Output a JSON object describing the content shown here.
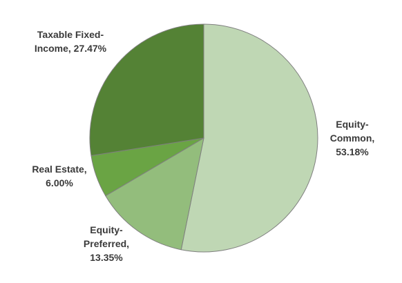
{
  "chart_data": {
    "type": "pie",
    "title": "",
    "slices": [
      {
        "label_lines": [
          "Equity-",
          "Common,",
          "53.18%"
        ],
        "category": "Equity-Common",
        "value": 53.18,
        "color": "#bfd7b4"
      },
      {
        "label_lines": [
          "Equity-",
          "Preferred,",
          "13.35%"
        ],
        "category": "Equity-Preferred",
        "value": 13.35,
        "color": "#93bd7c"
      },
      {
        "label_lines": [
          "Real Estate,",
          "6.00%"
        ],
        "category": "Real Estate",
        "value": 6.0,
        "color": "#6aa444"
      },
      {
        "label_lines": [
          "Taxable Fixed-",
          "Income, 27.47%"
        ],
        "category": "Taxable Fixed-Income",
        "value": 27.47,
        "color": "#548235"
      }
    ],
    "start_angle": "12 o'clock",
    "direction": "clockwise",
    "legend": "none"
  }
}
